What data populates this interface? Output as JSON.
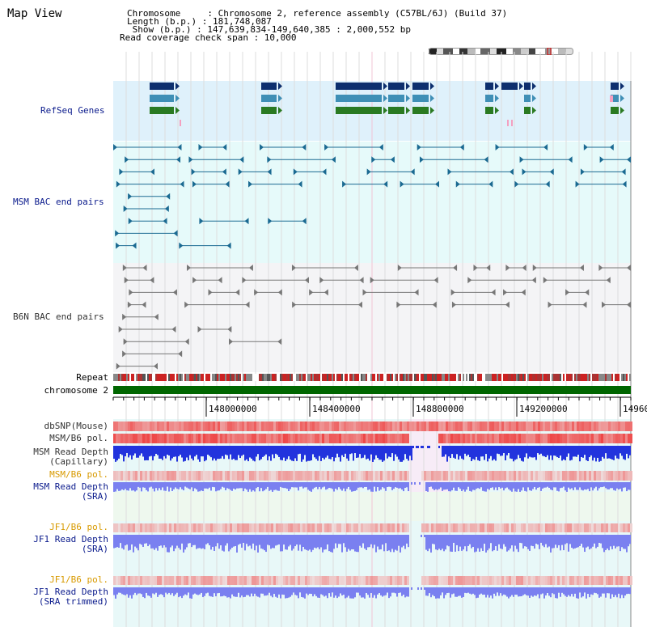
{
  "header": {
    "title": "Map View",
    "lines": [
      {
        "text": "Chromosome     : Chromosome 2, reference assembly (C57BL/6J) (Build 37)",
        "indent": 157
      },
      {
        "text": "Length (b.p.) : 181,748,087",
        "indent": 157
      },
      {
        "text": " Show (b.p.) : 147,639,834-149,640,385 : 2,000,552 bp",
        "indent": 157
      },
      {
        "text": "Read coverage check span : 10,000",
        "indent": 148
      }
    ]
  },
  "tracks": {
    "refseq": "RefSeq Genes",
    "msm_bac": "MSM BAC end pairs",
    "b6n_bac": "B6N BAC end pairs",
    "repeat": "Repeat",
    "chromosome": "chromosome 2",
    "dbsnp": "dbSNP(Mouse)",
    "msm_b6_pol": "MSM/B6 pol.",
    "msm_depth_cap": "MSM Read Depth\n(Capillary)",
    "msm_b6_pol_2": "MSM/B6 pol.",
    "msm_depth_sra": "MSM Read Depth\n(SRA)",
    "jf1_b6_pol": "JF1/B6 pol.",
    "jf1_depth_sra": "JF1 Read Depth\n(SRA)",
    "jf1_b6_pol_2": "JF1/B6 pol.",
    "jf1_depth_trim": "JF1 Read Depth\n(SRA trimmed)"
  },
  "axis": {
    "ticks": [
      "148000000",
      "148400000",
      "148800000",
      "149200000",
      "14960"
    ]
  },
  "colors": {
    "refseq_bg": "#dff1fb",
    "msm_bg": "#e6fafa",
    "b6n_bg": "#f4f4f6",
    "depth_blue": "#2233dd",
    "depth_light": "#7a80f0",
    "pol_red": "#ee3333",
    "chrom_green": "#006600",
    "gene_dark": "#0d2f6e",
    "gene_mid": "#3f8fb6",
    "gene_green": "#2a7a22"
  }
}
